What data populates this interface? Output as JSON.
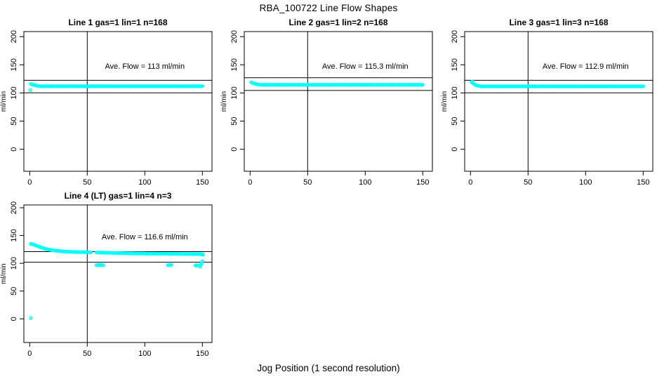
{
  "page_title": "RBA_100722  Line Flow Shapes",
  "x_axis_label": "Jog Position (1 second resolution)",
  "colors": {
    "points": "#00FFFF",
    "axis": "#000000",
    "background": "#FFFFFF"
  },
  "chart_data": [
    {
      "type": "scatter",
      "title": "Line 1 gas=1 lin=1 n=168",
      "annotation": "Ave. Flow =  113  ml/min",
      "ave_flow_ml_min": 113,
      "n": 168,
      "ylabel": "ml/min",
      "x_ticks": [
        0,
        50,
        100,
        150
      ],
      "y_ticks": [
        0,
        50,
        100,
        150,
        200
      ],
      "xlim": [
        -5.5,
        158.5
      ],
      "ylim": [
        -40,
        209
      ],
      "vline_x": 50,
      "hlines_y": [
        122.5,
        100.3
      ],
      "annotation_pos": [
        100,
        148
      ],
      "trace": {
        "x_start": 1,
        "x_step": 1,
        "y": [
          116,
          115,
          114.5,
          114,
          113.5,
          113,
          112.5,
          112.5,
          112,
          112,
          112,
          111.8,
          112.2,
          112,
          111.9,
          112.1,
          112,
          111.7,
          112.3,
          112,
          112,
          111.8,
          112.2,
          112,
          111.9,
          112.1,
          112,
          111.7,
          112.3,
          112,
          112,
          111.8,
          112.2,
          112,
          111.9,
          112.1,
          112,
          111.7,
          112.3,
          112,
          112,
          111.8,
          112.2,
          112,
          111.9,
          112.1,
          112,
          111.7,
          112.3,
          112,
          112,
          111.8,
          112.2,
          112,
          111.9,
          112.1,
          112,
          111.7,
          112.3,
          112,
          112,
          111.8,
          112.2,
          112,
          111.9,
          112.1,
          112,
          111.7,
          112.3,
          112,
          112,
          111.8,
          112.2,
          112,
          111.9,
          112.1,
          112,
          111.7,
          112.3,
          112,
          112,
          111.8,
          112.2,
          112,
          111.9,
          112.1,
          112,
          111.7,
          112.3,
          112,
          112,
          111.8,
          112.2,
          112,
          111.9,
          112.1,
          112,
          111.7,
          112.3,
          112,
          112,
          111.8,
          112.2,
          112,
          111.9,
          112.1,
          112,
          111.7,
          112.3,
          112,
          112,
          111.8,
          112.2,
          112,
          111.9,
          112.1,
          112,
          111.7,
          112.3,
          112,
          112,
          111.8,
          112.2,
          112,
          111.9,
          112.1,
          112,
          111.7,
          112.3,
          112,
          112,
          111.8,
          112.2,
          112,
          111.9,
          112.1,
          112,
          111.7,
          112.3,
          112,
          112,
          111.8,
          112.2,
          112,
          111.9,
          112.1,
          112,
          111.7,
          112.3,
          112
        ]
      },
      "outliers": [
        [
          0.5,
          105
        ]
      ]
    },
    {
      "type": "scatter",
      "title": "Line 2 gas=1 lin=2 n=168",
      "annotation": "Ave. Flow =  115.3  ml/min",
      "ave_flow_ml_min": 115.3,
      "n": 168,
      "ylabel": "ml/min",
      "x_ticks": [
        0,
        50,
        100,
        150
      ],
      "y_ticks": [
        0,
        50,
        100,
        150,
        200
      ],
      "xlim": [
        -5.5,
        158.5
      ],
      "ylim": [
        -40,
        209
      ],
      "vline_x": 50,
      "hlines_y": [
        127,
        104.5
      ],
      "annotation_pos": [
        100,
        148
      ],
      "trace": {
        "x_start": 1,
        "x_step": 1,
        "y": [
          119,
          118,
          117,
          116.5,
          116,
          115.5,
          115,
          115,
          114.5,
          114.5,
          114.5,
          114.2,
          114.8,
          114.4,
          114.6,
          114.3,
          114.7,
          114.5,
          114.2,
          114.6,
          114.5,
          114.2,
          114.8,
          114.4,
          114.6,
          114.3,
          114.7,
          114.5,
          114.2,
          114.6,
          114.5,
          114.2,
          114.8,
          114.4,
          114.6,
          114.3,
          114.7,
          114.5,
          114.2,
          114.6,
          114.5,
          114.2,
          114.8,
          114.4,
          114.6,
          114.3,
          114.7,
          114.5,
          114.2,
          114.6,
          114.5,
          114.2,
          114.8,
          114.4,
          114.6,
          114.3,
          114.7,
          114.5,
          114.2,
          114.6,
          114.5,
          114.2,
          114.8,
          114.4,
          114.6,
          114.3,
          114.7,
          114.5,
          114.2,
          114.6,
          114.5,
          114.2,
          114.8,
          114.4,
          114.6,
          114.3,
          114.7,
          114.5,
          114.2,
          114.6,
          114.5,
          114.2,
          114.8,
          114.4,
          114.6,
          114.3,
          114.7,
          114.5,
          114.2,
          114.6,
          114.5,
          114.2,
          114.8,
          114.4,
          114.6,
          114.3,
          114.7,
          114.5,
          114.2,
          114.6,
          114.5,
          114.2,
          114.8,
          114.4,
          114.6,
          114.3,
          114.7,
          114.5,
          114.2,
          114.6,
          114.5,
          114.2,
          114.8,
          114.4,
          114.6,
          114.3,
          114.7,
          114.5,
          114.2,
          114.6,
          114.5,
          114.2,
          114.8,
          114.4,
          114.6,
          114.3,
          114.7,
          114.5,
          114.2,
          114.6,
          114.5,
          114.2,
          114.8,
          114.4,
          114.6,
          114.3,
          114.7,
          114.5,
          114.2,
          114.6,
          114.5,
          114.2,
          114.8,
          114.4,
          114.6,
          114.3,
          114.7,
          114.5,
          114.2,
          114.6
        ]
      },
      "outliers": []
    },
    {
      "type": "scatter",
      "title": "Line 3 gas=1 lin=3 n=168",
      "annotation": "Ave. Flow =  112.9  ml/min",
      "ave_flow_ml_min": 112.9,
      "n": 168,
      "ylabel": "ml/min",
      "x_ticks": [
        0,
        50,
        100,
        150
      ],
      "y_ticks": [
        0,
        50,
        100,
        150,
        200
      ],
      "xlim": [
        -5.5,
        158.5
      ],
      "ylim": [
        -40,
        209
      ],
      "vline_x": 50,
      "hlines_y": [
        122.5,
        100.2
      ],
      "annotation_pos": [
        100,
        148
      ],
      "trace": {
        "x_start": 1,
        "x_step": 1,
        "y": [
          119,
          117.5,
          116,
          114.5,
          113.5,
          113,
          112.5,
          112,
          112,
          111.8,
          111.8,
          111.5,
          112,
          111.6,
          111.9,
          111.4,
          112,
          111.7,
          111.5,
          111.9,
          111.8,
          111.5,
          112,
          111.6,
          111.9,
          111.4,
          112,
          111.7,
          111.5,
          111.9,
          111.8,
          111.5,
          112,
          111.6,
          111.9,
          111.4,
          112,
          111.7,
          111.5,
          111.9,
          111.8,
          111.5,
          112,
          111.6,
          111.9,
          111.4,
          112,
          111.7,
          111.5,
          111.9,
          111.8,
          111.5,
          112,
          111.6,
          111.9,
          111.4,
          112,
          111.7,
          111.5,
          111.9,
          111.8,
          111.5,
          112,
          111.6,
          111.9,
          111.4,
          112,
          111.7,
          111.5,
          111.9,
          111.8,
          111.5,
          112,
          111.6,
          111.9,
          111.4,
          112,
          111.7,
          111.5,
          111.9,
          111.8,
          111.5,
          112,
          111.6,
          111.9,
          111.4,
          112,
          111.7,
          111.5,
          111.9,
          111.8,
          111.5,
          112,
          111.6,
          111.9,
          111.4,
          112,
          111.7,
          111.5,
          111.9,
          111.8,
          111.5,
          112,
          111.6,
          111.9,
          111.4,
          112,
          111.7,
          111.5,
          111.9,
          111.8,
          111.5,
          112,
          111.6,
          111.9,
          111.4,
          112,
          111.7,
          111.5,
          111.9,
          111.8,
          111.5,
          112,
          111.6,
          111.9,
          111.4,
          112,
          111.7,
          111.5,
          111.9,
          111.8,
          111.5,
          112,
          111.6,
          111.9,
          111.4,
          112,
          111.7,
          111.5,
          111.9,
          111.8,
          111.5,
          112,
          111.6,
          111.9,
          111.4,
          112,
          111.7,
          111.5,
          111.9
        ]
      },
      "outliers": [
        [
          1.5,
          120.5
        ]
      ]
    },
    {
      "type": "scatter",
      "title": "Line 4 (LT) gas=1 lin=4 n=3",
      "annotation": "Ave. Flow =  116.6  ml/min",
      "ave_flow_ml_min": 116.6,
      "n": 3,
      "ylabel": "ml/min",
      "x_ticks": [
        0,
        50,
        100,
        150
      ],
      "y_ticks": [
        0,
        50,
        100,
        150,
        200
      ],
      "xlim": [
        -5.5,
        158.5
      ],
      "ylim": [
        -43,
        205.5
      ],
      "vline_x": 50,
      "hlines_y": [
        121,
        102
      ],
      "annotation_pos": [
        100,
        148
      ],
      "trace": {
        "x_start": 1,
        "x_step": 1,
        "y": [
          135,
          134.5,
          134,
          133.2,
          132.4,
          131.6,
          130.8,
          130,
          129.2,
          128.5,
          127.8,
          127.2,
          126.6,
          126,
          125.5,
          125,
          124.6,
          124.2,
          123.8,
          123.5,
          123.2,
          122.9,
          122.6,
          122.4,
          122.2,
          122,
          121.8,
          121.6,
          121.4,
          121.2,
          121.1,
          121,
          120.9,
          120.8,
          120.7,
          120.6,
          120.5,
          120.5,
          120.4,
          120.4,
          120.3,
          120.3,
          120.2,
          120.2,
          120.1,
          120.1,
          120,
          120,
          119.9,
          119.9,
          119.8,
          119.8,
          119.7,
          null,
          null,
          null,
          null,
          119.5,
          119.4,
          119.4,
          119.3,
          119.3,
          119.2,
          119.2,
          119.1,
          119,
          119,
          118.9,
          118.9,
          118.8,
          118.8,
          118.7,
          118.6,
          118.6,
          118.5,
          118.5,
          118.4,
          118.4,
          118.3,
          118.3,
          118.3,
          118.2,
          118.2,
          118.1,
          118.1,
          118,
          118,
          118,
          117.9,
          117.9,
          117.9,
          117.8,
          117.8,
          117.8,
          117.7,
          117.7,
          117.7,
          117.6,
          117.6,
          117.6,
          117.6,
          117.5,
          117.5,
          117.5,
          117.5,
          117.4,
          117.4,
          117.4,
          117.4,
          117.3,
          117.3,
          117.3,
          117.3,
          117.3,
          117.2,
          117.2,
          117.2,
          117.2,
          117.2,
          117.1,
          117.1,
          117.1,
          117.1,
          117.1,
          117,
          117,
          117,
          117,
          117,
          117,
          117,
          116.9,
          116.9,
          116.9,
          116.9,
          116.9,
          116.8,
          116.8,
          116.8,
          116.8,
          116.8,
          116.8,
          116.7,
          116.7,
          116.7,
          116.7,
          116.6,
          116.6,
          116.5,
          116.5
        ]
      },
      "outliers": [
        [
          1,
          1.5
        ],
        [
          58,
          96.5
        ],
        [
          59,
          97
        ],
        [
          60,
          96.5
        ],
        [
          61,
          97
        ],
        [
          62,
          96.5
        ],
        [
          63,
          97
        ],
        [
          64,
          96.5
        ],
        [
          120,
          96.5
        ],
        [
          121,
          97
        ],
        [
          122,
          96.5
        ],
        [
          123,
          97
        ],
        [
          144,
          96
        ],
        [
          145,
          96.5
        ],
        [
          146,
          96
        ],
        [
          148,
          94
        ],
        [
          148.5,
          96.5
        ],
        [
          149,
          99
        ],
        [
          149.5,
          101.5
        ],
        [
          150,
          104
        ],
        [
          149,
          116
        ],
        [
          150.5,
          115.5
        ]
      ]
    }
  ]
}
